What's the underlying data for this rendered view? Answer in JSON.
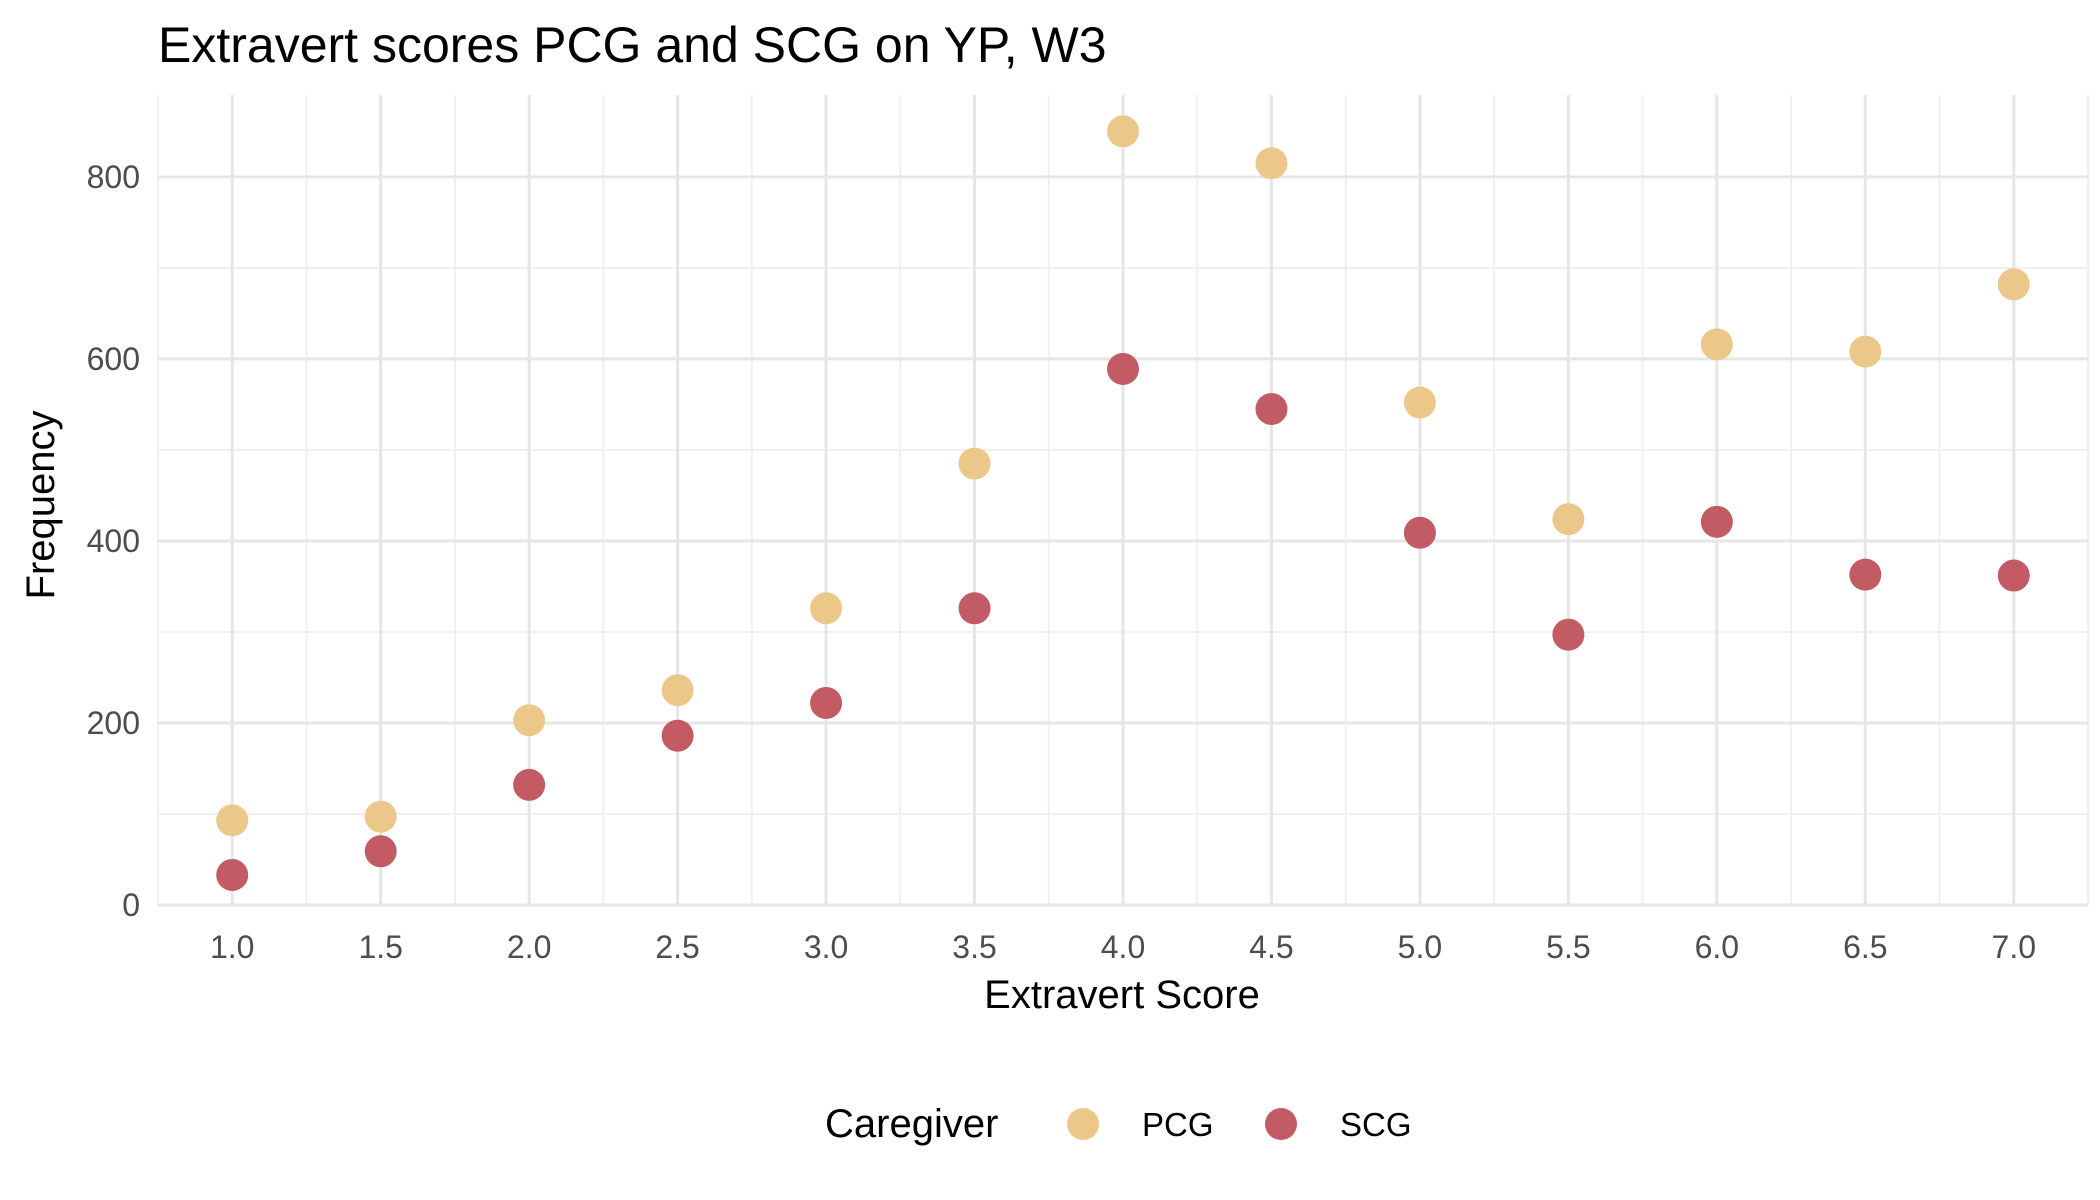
{
  "chart_data": {
    "type": "scatter",
    "title": "Extravert scores PCG and SCG on YP, W3",
    "xlabel": "Extravert Score",
    "ylabel": "Frequency",
    "x": [
      1.0,
      1.5,
      2.0,
      2.5,
      3.0,
      3.5,
      4.0,
      4.5,
      5.0,
      5.5,
      6.0,
      6.5,
      7.0
    ],
    "x_tick_labels": [
      "1.0",
      "1.5",
      "2.0",
      "2.5",
      "3.0",
      "3.5",
      "4.0",
      "4.5",
      "5.0",
      "5.5",
      "6.0",
      "6.5",
      "7.0"
    ],
    "y_ticks": [
      0,
      200,
      400,
      600,
      800
    ],
    "y_tick_labels": [
      "0",
      "200",
      "400",
      "600",
      "800"
    ],
    "xlim": [
      0.75,
      7.25
    ],
    "ylim": [
      0,
      890
    ],
    "grid": true,
    "legend_placement": "bottom",
    "legend_title": "Caregiver",
    "series": [
      {
        "name": "PCG",
        "color": "#EBC88A",
        "values": [
          93,
          97,
          203,
          236,
          326,
          485,
          850,
          815,
          552,
          424,
          616,
          608,
          682
        ]
      },
      {
        "name": "SCG",
        "color": "#C25B64",
        "values": [
          33,
          59,
          132,
          186,
          222,
          326,
          589,
          545,
          409,
          297,
          421,
          363,
          362
        ]
      }
    ]
  }
}
